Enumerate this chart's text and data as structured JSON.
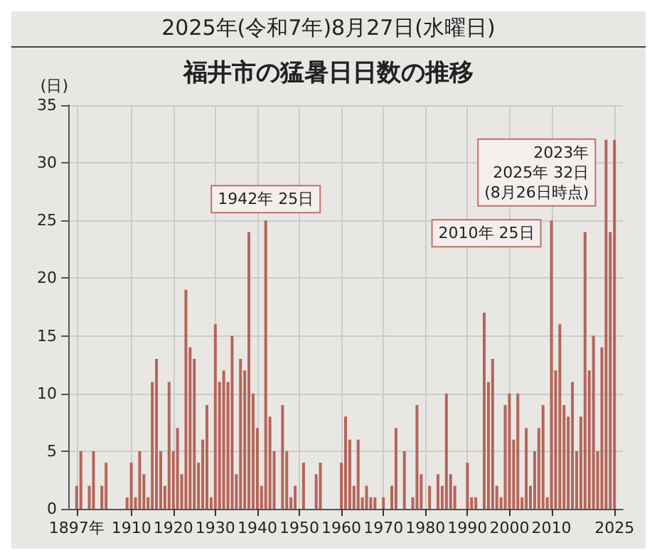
{
  "chart_data": {
    "type": "bar",
    "title": "福井市の猛暑日日数の推移",
    "ylabel": "(日)",
    "annotations": [
      "2025年(令和7年)8月27日(水曜日)",
      {
        "text": "1942年 25日",
        "x": 1942,
        "y": 25
      },
      {
        "text": "2010年 25日",
        "x": 2010,
        "y": 25
      },
      {
        "text": "2023年\n2025年 32日\n(8月26日時点)",
        "x": 2023,
        "y": 32
      }
    ],
    "x": [
      1897,
      1898,
      1899,
      1900,
      1901,
      1902,
      1903,
      1904,
      1905,
      1906,
      1907,
      1908,
      1909,
      1910,
      1911,
      1912,
      1913,
      1914,
      1915,
      1916,
      1917,
      1918,
      1919,
      1920,
      1921,
      1922,
      1923,
      1924,
      1925,
      1926,
      1927,
      1928,
      1929,
      1930,
      1931,
      1932,
      1933,
      1934,
      1935,
      1936,
      1937,
      1938,
      1939,
      1940,
      1941,
      1942,
      1943,
      1944,
      1945,
      1946,
      1947,
      1948,
      1949,
      1950,
      1951,
      1952,
      1953,
      1954,
      1955,
      1956,
      1957,
      1958,
      1959,
      1960,
      1961,
      1962,
      1963,
      1964,
      1965,
      1966,
      1967,
      1968,
      1969,
      1970,
      1971,
      1972,
      1973,
      1974,
      1975,
      1976,
      1977,
      1978,
      1979,
      1980,
      1981,
      1982,
      1983,
      1984,
      1985,
      1986,
      1987,
      1988,
      1989,
      1990,
      1991,
      1992,
      1993,
      1994,
      1995,
      1996,
      1997,
      1998,
      1999,
      2000,
      2001,
      2002,
      2003,
      2004,
      2005,
      2006,
      2007,
      2008,
      2009,
      2010,
      2011,
      2012,
      2013,
      2014,
      2015,
      2016,
      2017,
      2018,
      2019,
      2020,
      2021,
      2022,
      2023,
      2024,
      2025
    ],
    "values": [
      2,
      5,
      0,
      2,
      5,
      0,
      2,
      4,
      0,
      0,
      0,
      0,
      1,
      4,
      1,
      5,
      3,
      1,
      11,
      13,
      5,
      2,
      11,
      5,
      7,
      3,
      19,
      14,
      13,
      4,
      6,
      9,
      1,
      16,
      11,
      12,
      11,
      15,
      3,
      13,
      12,
      24,
      10,
      7,
      2,
      25,
      8,
      5,
      0,
      9,
      5,
      1,
      2,
      0,
      4,
      0,
      0,
      3,
      4,
      0,
      0,
      0,
      0,
      4,
      8,
      6,
      2,
      6,
      1,
      2,
      1,
      1,
      0,
      1,
      0,
      2,
      7,
      0,
      5,
      0,
      1,
      9,
      3,
      0,
      2,
      0,
      3,
      2,
      10,
      3,
      2,
      0,
      0,
      4,
      1,
      1,
      0,
      17,
      11,
      13,
      2,
      1,
      9,
      10,
      6,
      10,
      1,
      7,
      2,
      5,
      7,
      9,
      1,
      25,
      12,
      16,
      9,
      8,
      11,
      5,
      8,
      24,
      12,
      15,
      5,
      14,
      32,
      24,
      32
    ],
    "color": "#b5655a",
    "xlim": [
      1895,
      2027
    ],
    "xticks": [
      {
        "value": 1897,
        "label": "1897年"
      },
      1910,
      1920,
      1930,
      1940,
      1950,
      1960,
      1970,
      1980,
      1990,
      2000,
      2010,
      2025
    ],
    "ylim": [
      0,
      35
    ],
    "yticks": [
      0,
      5,
      10,
      15,
      20,
      25,
      30,
      35
    ],
    "grid": true
  }
}
